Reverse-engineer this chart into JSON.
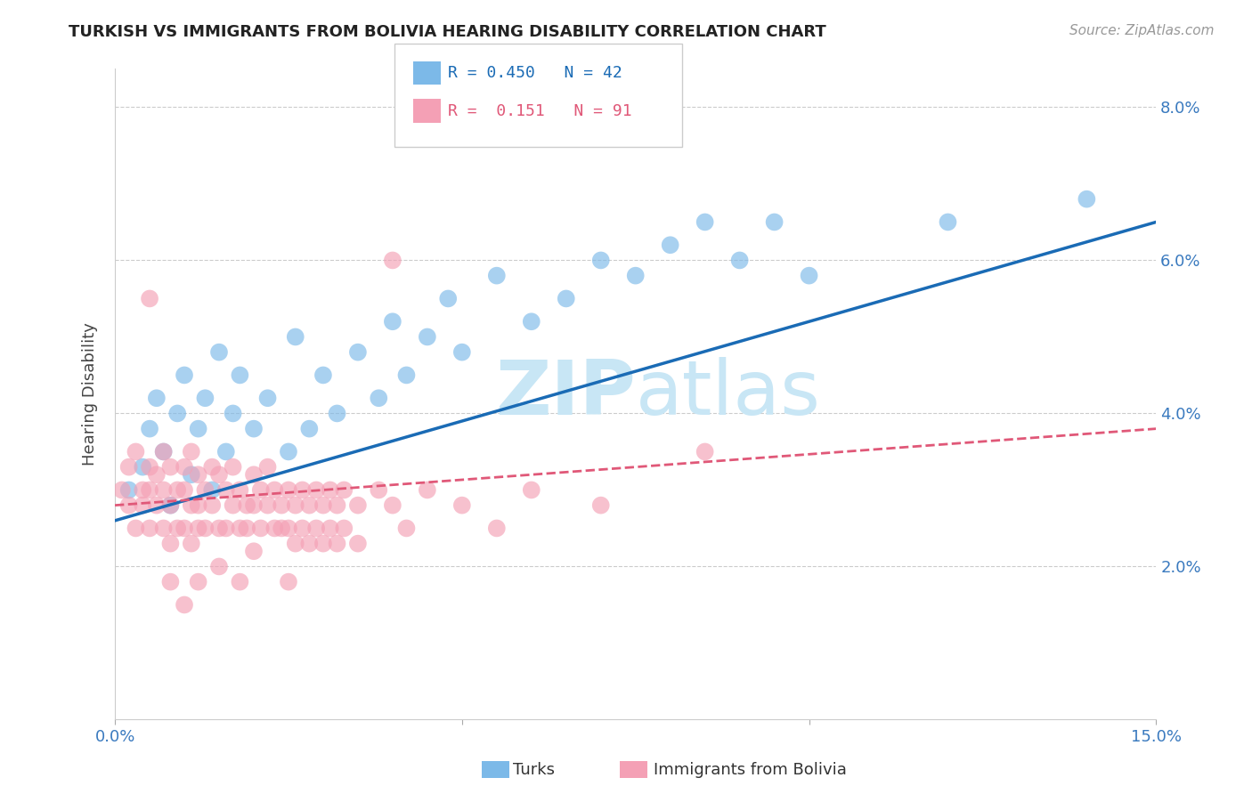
{
  "title": "TURKISH VS IMMIGRANTS FROM BOLIVIA HEARING DISABILITY CORRELATION CHART",
  "source": "Source: ZipAtlas.com",
  "ylabel": "Hearing Disability",
  "xlabel": "",
  "xlim": [
    0.0,
    0.15
  ],
  "ylim": [
    0.0,
    0.085
  ],
  "xtick_positions": [
    0.0,
    0.05,
    0.1,
    0.15
  ],
  "xtick_labels": [
    "0.0%",
    "",
    "",
    "15.0%"
  ],
  "ytick_positions": [
    0.0,
    0.02,
    0.04,
    0.06,
    0.08
  ],
  "ytick_labels": [
    "",
    "2.0%",
    "4.0%",
    "6.0%",
    "8.0%"
  ],
  "turks_R": 0.45,
  "turks_N": 42,
  "bolivia_R": 0.151,
  "bolivia_N": 91,
  "turks_color": "#7cb9e8",
  "bolivia_color": "#f4a0b5",
  "turks_line_color": "#1a6bb5",
  "bolivia_line_color": "#e05878",
  "watermark_color": "#c8e6f5",
  "turks_scatter": [
    [
      0.002,
      0.03
    ],
    [
      0.004,
      0.033
    ],
    [
      0.005,
      0.038
    ],
    [
      0.006,
      0.042
    ],
    [
      0.007,
      0.035
    ],
    [
      0.008,
      0.028
    ],
    [
      0.009,
      0.04
    ],
    [
      0.01,
      0.045
    ],
    [
      0.011,
      0.032
    ],
    [
      0.012,
      0.038
    ],
    [
      0.013,
      0.042
    ],
    [
      0.014,
      0.03
    ],
    [
      0.015,
      0.048
    ],
    [
      0.016,
      0.035
    ],
    [
      0.017,
      0.04
    ],
    [
      0.018,
      0.045
    ],
    [
      0.02,
      0.038
    ],
    [
      0.022,
      0.042
    ],
    [
      0.025,
      0.035
    ],
    [
      0.026,
      0.05
    ],
    [
      0.028,
      0.038
    ],
    [
      0.03,
      0.045
    ],
    [
      0.032,
      0.04
    ],
    [
      0.035,
      0.048
    ],
    [
      0.038,
      0.042
    ],
    [
      0.04,
      0.052
    ],
    [
      0.042,
      0.045
    ],
    [
      0.045,
      0.05
    ],
    [
      0.048,
      0.055
    ],
    [
      0.05,
      0.048
    ],
    [
      0.055,
      0.058
    ],
    [
      0.06,
      0.052
    ],
    [
      0.065,
      0.055
    ],
    [
      0.07,
      0.06
    ],
    [
      0.075,
      0.058
    ],
    [
      0.08,
      0.062
    ],
    [
      0.085,
      0.065
    ],
    [
      0.09,
      0.06
    ],
    [
      0.095,
      0.065
    ],
    [
      0.1,
      0.058
    ],
    [
      0.12,
      0.065
    ],
    [
      0.14,
      0.068
    ]
  ],
  "bolivia_scatter": [
    [
      0.001,
      0.03
    ],
    [
      0.002,
      0.033
    ],
    [
      0.002,
      0.028
    ],
    [
      0.003,
      0.035
    ],
    [
      0.003,
      0.025
    ],
    [
      0.004,
      0.03
    ],
    [
      0.004,
      0.028
    ],
    [
      0.005,
      0.033
    ],
    [
      0.005,
      0.03
    ],
    [
      0.005,
      0.025
    ],
    [
      0.006,
      0.032
    ],
    [
      0.006,
      0.028
    ],
    [
      0.007,
      0.035
    ],
    [
      0.007,
      0.03
    ],
    [
      0.007,
      0.025
    ],
    [
      0.008,
      0.033
    ],
    [
      0.008,
      0.028
    ],
    [
      0.008,
      0.023
    ],
    [
      0.009,
      0.03
    ],
    [
      0.009,
      0.025
    ],
    [
      0.01,
      0.033
    ],
    [
      0.01,
      0.03
    ],
    [
      0.01,
      0.025
    ],
    [
      0.011,
      0.035
    ],
    [
      0.011,
      0.028
    ],
    [
      0.011,
      0.023
    ],
    [
      0.012,
      0.032
    ],
    [
      0.012,
      0.028
    ],
    [
      0.012,
      0.025
    ],
    [
      0.013,
      0.03
    ],
    [
      0.013,
      0.025
    ],
    [
      0.014,
      0.033
    ],
    [
      0.014,
      0.028
    ],
    [
      0.015,
      0.032
    ],
    [
      0.015,
      0.025
    ],
    [
      0.016,
      0.03
    ],
    [
      0.016,
      0.025
    ],
    [
      0.017,
      0.033
    ],
    [
      0.017,
      0.028
    ],
    [
      0.018,
      0.03
    ],
    [
      0.018,
      0.025
    ],
    [
      0.019,
      0.028
    ],
    [
      0.019,
      0.025
    ],
    [
      0.02,
      0.032
    ],
    [
      0.02,
      0.028
    ],
    [
      0.021,
      0.03
    ],
    [
      0.021,
      0.025
    ],
    [
      0.022,
      0.033
    ],
    [
      0.022,
      0.028
    ],
    [
      0.023,
      0.03
    ],
    [
      0.023,
      0.025
    ],
    [
      0.024,
      0.028
    ],
    [
      0.024,
      0.025
    ],
    [
      0.025,
      0.03
    ],
    [
      0.025,
      0.025
    ],
    [
      0.026,
      0.028
    ],
    [
      0.026,
      0.023
    ],
    [
      0.027,
      0.03
    ],
    [
      0.027,
      0.025
    ],
    [
      0.028,
      0.028
    ],
    [
      0.028,
      0.023
    ],
    [
      0.029,
      0.03
    ],
    [
      0.029,
      0.025
    ],
    [
      0.03,
      0.028
    ],
    [
      0.03,
      0.023
    ],
    [
      0.031,
      0.03
    ],
    [
      0.031,
      0.025
    ],
    [
      0.032,
      0.028
    ],
    [
      0.032,
      0.023
    ],
    [
      0.033,
      0.03
    ],
    [
      0.033,
      0.025
    ],
    [
      0.035,
      0.028
    ],
    [
      0.035,
      0.023
    ],
    [
      0.038,
      0.03
    ],
    [
      0.04,
      0.028
    ],
    [
      0.042,
      0.025
    ],
    [
      0.045,
      0.03
    ],
    [
      0.05,
      0.028
    ],
    [
      0.055,
      0.025
    ],
    [
      0.06,
      0.03
    ],
    [
      0.005,
      0.055
    ],
    [
      0.008,
      0.018
    ],
    [
      0.01,
      0.015
    ],
    [
      0.012,
      0.018
    ],
    [
      0.015,
      0.02
    ],
    [
      0.018,
      0.018
    ],
    [
      0.02,
      0.022
    ],
    [
      0.025,
      0.018
    ],
    [
      0.04,
      0.06
    ],
    [
      0.07,
      0.028
    ],
    [
      0.085,
      0.035
    ]
  ],
  "turks_line_x": [
    0.0,
    0.15
  ],
  "turks_line_y": [
    0.026,
    0.065
  ],
  "bolivia_line_x": [
    0.0,
    0.15
  ],
  "bolivia_line_y": [
    0.028,
    0.038
  ]
}
